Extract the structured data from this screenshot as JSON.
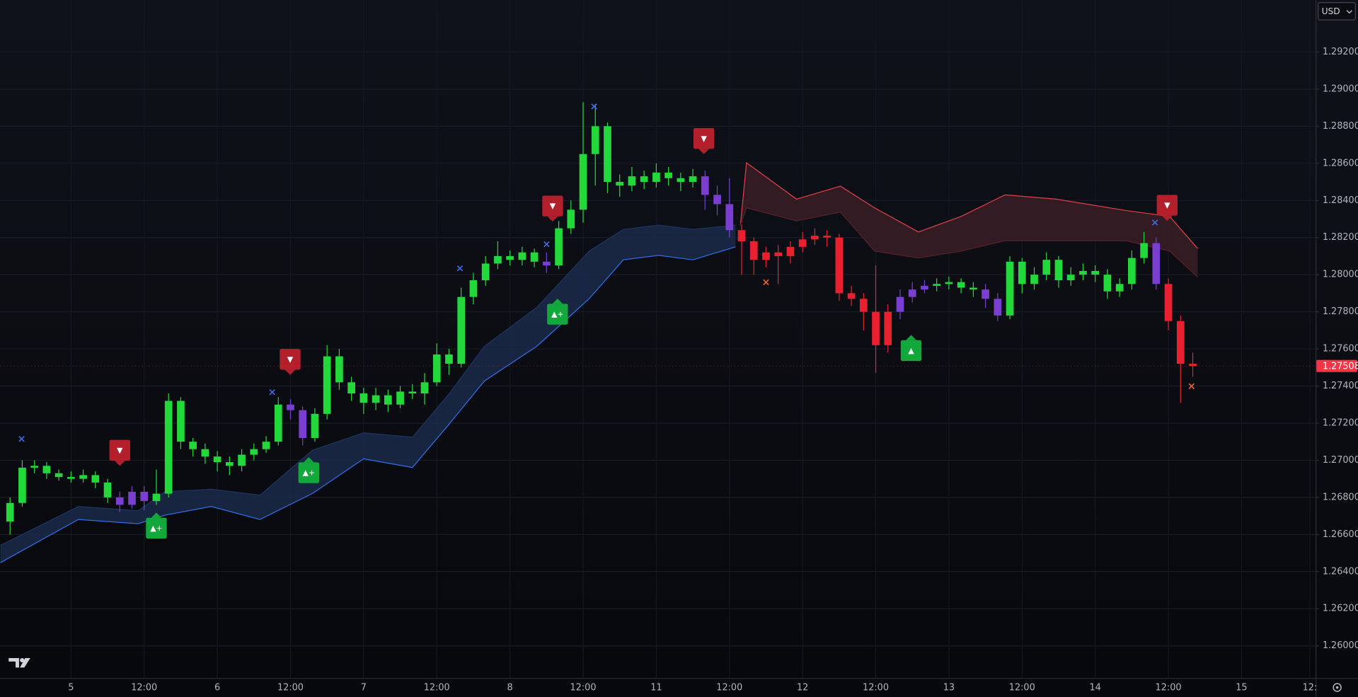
{
  "chart_data": {
    "type": "candlestick",
    "currency": "USD",
    "x": [
      -5,
      -4,
      -3,
      -2,
      -1,
      0,
      1,
      2,
      3,
      4,
      5,
      6,
      7,
      8,
      9,
      10,
      11,
      12,
      13,
      14,
      15,
      16,
      17,
      18,
      19,
      20,
      21,
      22,
      23,
      24,
      25,
      26,
      27,
      28,
      29,
      30,
      31,
      32,
      33,
      34,
      35,
      36,
      37,
      38,
      39,
      40,
      41,
      42,
      43,
      44,
      45,
      46,
      47,
      48,
      49,
      50,
      51,
      52,
      53,
      54,
      55,
      56,
      57,
      58,
      59,
      60,
      61,
      62,
      63,
      64,
      65,
      66,
      67,
      68,
      69,
      70,
      71,
      72,
      73,
      74,
      75,
      76,
      77,
      78,
      79,
      80,
      81,
      82,
      83,
      84,
      85,
      86,
      87,
      88,
      89,
      90,
      91,
      92
    ],
    "open": [
      1.2667,
      1.2677,
      1.2696,
      1.2697,
      1.2693,
      1.2691,
      1.269,
      1.2692,
      1.2688,
      1.268,
      1.2676,
      1.2683,
      1.2678,
      1.2682,
      1.2732,
      1.271,
      1.2706,
      1.2702,
      1.2699,
      1.2697,
      1.2703,
      1.2706,
      1.271,
      1.273,
      1.2727,
      1.2712,
      1.2725,
      1.2756,
      1.2742,
      1.2736,
      1.2731,
      1.2735,
      1.273,
      1.2737,
      1.2736,
      1.2742,
      1.2757,
      1.2752,
      1.2788,
      1.2797,
      1.2806,
      1.281,
      1.2808,
      1.2812,
      1.2807,
      1.2805,
      1.2825,
      1.2835,
      1.2865,
      1.288,
      1.285,
      1.2848,
      1.2853,
      1.285,
      1.2855,
      1.2852,
      1.285,
      1.2853,
      1.2843,
      1.2838,
      1.2824,
      1.2818,
      1.2808,
      1.2812,
      1.281,
      1.2815,
      1.2819,
      1.2821,
      1.282,
      1.279,
      1.2787,
      1.278,
      1.2762,
      1.278,
      1.2788,
      1.2792,
      1.2794,
      1.2795,
      1.2796,
      1.2793,
      1.2792,
      1.2787,
      1.2778,
      1.2807,
      1.2795,
      1.28,
      1.2808,
      1.2797,
      1.28,
      1.2802,
      1.28,
      1.2791,
      1.2795,
      1.2809,
      1.2817,
      1.2795,
      1.2775,
      1.2752
    ],
    "high": [
      1.268,
      1.27,
      1.27,
      1.2699,
      1.2695,
      1.2694,
      1.2695,
      1.2694,
      1.269,
      1.2683,
      1.2686,
      1.2686,
      1.2695,
      1.2736,
      1.2734,
      1.2712,
      1.2709,
      1.2705,
      1.2702,
      1.2706,
      1.2709,
      1.2713,
      1.2734,
      1.2733,
      1.2729,
      1.2728,
      1.2762,
      1.276,
      1.2745,
      1.2739,
      1.2739,
      1.2738,
      1.274,
      1.2741,
      1.2747,
      1.2763,
      1.276,
      1.2793,
      1.2801,
      1.281,
      1.2818,
      1.2813,
      1.2815,
      1.2814,
      1.2812,
      1.2829,
      1.284,
      1.2893,
      1.2892,
      1.2882,
      1.2854,
      1.2858,
      1.2856,
      1.286,
      1.2858,
      1.2855,
      1.2857,
      1.2856,
      1.2848,
      1.2852,
      1.2827,
      1.282,
      1.2815,
      1.2816,
      1.2818,
      1.2823,
      1.2825,
      1.2824,
      1.2822,
      1.2794,
      1.279,
      1.2805,
      1.2784,
      1.2792,
      1.2796,
      1.2797,
      1.2798,
      1.2799,
      1.2798,
      1.2796,
      1.2795,
      1.279,
      1.281,
      1.2809,
      1.2804,
      1.2812,
      1.281,
      1.2804,
      1.2806,
      1.2805,
      1.2803,
      1.2798,
      1.2813,
      1.2823,
      1.282,
      1.2798,
      1.2778,
      1.2758
    ],
    "low": [
      1.266,
      1.2675,
      1.2693,
      1.269,
      1.2689,
      1.2688,
      1.2688,
      1.2685,
      1.2677,
      1.2672,
      1.2674,
      1.2673,
      1.2676,
      1.268,
      1.2706,
      1.2702,
      1.2698,
      1.2694,
      1.2692,
      1.2694,
      1.27,
      1.2704,
      1.2708,
      1.2722,
      1.2708,
      1.271,
      1.2722,
      1.2738,
      1.2732,
      1.2725,
      1.2727,
      1.2726,
      1.2728,
      1.2733,
      1.273,
      1.274,
      1.2746,
      1.275,
      1.2784,
      1.2794,
      1.2803,
      1.2805,
      1.2805,
      1.2804,
      1.2801,
      1.2803,
      1.2822,
      1.2828,
      1.2848,
      1.2844,
      1.2842,
      1.2845,
      1.2846,
      1.2847,
      1.2848,
      1.2845,
      1.2847,
      1.2835,
      1.2832,
      1.282,
      1.28,
      1.28,
      1.2804,
      1.2795,
      1.2806,
      1.2812,
      1.2816,
      1.2815,
      1.2786,
      1.2783,
      1.277,
      1.2747,
      1.2758,
      1.2776,
      1.2785,
      1.279,
      1.2791,
      1.2792,
      1.279,
      1.2788,
      1.2782,
      1.2775,
      1.2776,
      1.279,
      1.2792,
      1.2797,
      1.2793,
      1.2794,
      1.2797,
      1.2796,
      1.2787,
      1.2788,
      1.2792,
      1.2806,
      1.2792,
      1.277,
      1.2731,
      1.2745
    ],
    "close": [
      1.2677,
      1.2696,
      1.2697,
      1.2693,
      1.2691,
      1.269,
      1.2692,
      1.2688,
      1.268,
      1.2676,
      1.2683,
      1.2678,
      1.2682,
      1.2732,
      1.271,
      1.2706,
      1.2702,
      1.2699,
      1.2697,
      1.2703,
      1.2706,
      1.271,
      1.273,
      1.2727,
      1.2712,
      1.2725,
      1.2756,
      1.2742,
      1.2736,
      1.2731,
      1.2735,
      1.273,
      1.2737,
      1.2736,
      1.2742,
      1.2757,
      1.2752,
      1.2788,
      1.2797,
      1.2806,
      1.281,
      1.2808,
      1.2812,
      1.2807,
      1.2805,
      1.2825,
      1.2835,
      1.2865,
      1.288,
      1.285,
      1.2848,
      1.2853,
      1.285,
      1.2855,
      1.2852,
      1.285,
      1.2853,
      1.2843,
      1.2838,
      1.2824,
      1.2818,
      1.2808,
      1.2812,
      1.281,
      1.2815,
      1.2819,
      1.2821,
      1.282,
      1.279,
      1.2787,
      1.278,
      1.2762,
      1.278,
      1.2788,
      1.2792,
      1.2794,
      1.2795,
      1.2796,
      1.2793,
      1.2792,
      1.2787,
      1.2778,
      1.2807,
      1.2795,
      1.28,
      1.2808,
      1.2797,
      1.28,
      1.2802,
      1.28,
      1.2791,
      1.2795,
      1.2809,
      1.2817,
      1.2795,
      1.2775,
      1.2752,
      1.27508
    ],
    "colors": [
      "#22d83a",
      "#22d83a",
      "#22d83a",
      "#22d83a",
      "#22d83a",
      "#22d83a",
      "#22d83a",
      "#22d83a",
      "#22d83a",
      "#7a3fd0",
      "#7a3fd0",
      "#7a3fd0",
      "#22d83a",
      "#22d83a",
      "#22d83a",
      "#22d83a",
      "#22d83a",
      "#22d83a",
      "#22d83a",
      "#22d83a",
      "#22d83a",
      "#22d83a",
      "#22d83a",
      "#7a3fd0",
      "#7a3fd0",
      "#22d83a",
      "#22d83a",
      "#22d83a",
      "#22d83a",
      "#22d83a",
      "#22d83a",
      "#22d83a",
      "#22d83a",
      "#22d83a",
      "#22d83a",
      "#22d83a",
      "#22d83a",
      "#22d83a",
      "#22d83a",
      "#22d83a",
      "#22d83a",
      "#22d83a",
      "#22d83a",
      "#22d83a",
      "#7a3fd0",
      "#22d83a",
      "#22d83a",
      "#22d83a",
      "#22d83a",
      "#22d83a",
      "#22d83a",
      "#22d83a",
      "#22d83a",
      "#22d83a",
      "#22d83a",
      "#22d83a",
      "#22d83a",
      "#7a3fd0",
      "#7a3fd0",
      "#7a3fd0",
      "#e8202f",
      "#e8202f",
      "#e8202f",
      "#e8202f",
      "#e8202f",
      "#e8202f",
      "#e8202f",
      "#e8202f",
      "#e8202f",
      "#e8202f",
      "#e8202f",
      "#e8202f",
      "#e8202f",
      "#7a3fd0",
      "#7a3fd0",
      "#7a3fd0",
      "#22d83a",
      "#22d83a",
      "#22d83a",
      "#22d83a",
      "#7a3fd0",
      "#7a3fd0",
      "#22d83a",
      "#22d83a",
      "#22d83a",
      "#22d83a",
      "#22d83a",
      "#22d83a",
      "#22d83a",
      "#22d83a",
      "#22d83a",
      "#22d83a",
      "#22d83a",
      "#22d83a",
      "#7a3fd0",
      "#e8202f",
      "#e8202f",
      "#e8202f"
    ],
    "bands": [
      {
        "fill": "#1b2a4a",
        "edge_colors": [
          "#1e3560",
          "#2f6fe8"
        ],
        "x": [
          -5.8,
          0.6,
          5.5,
          7.7,
          11.5,
          15.5,
          19.8,
          24,
          28,
          31,
          33.9,
          38.2,
          42.5,
          45.3,
          48.2,
          51,
          54.5
        ],
        "upper": [
          1.26541,
          1.26751,
          1.26728,
          1.2683,
          1.26844,
          1.26812,
          1.27054,
          1.27148,
          1.27124,
          1.27357,
          1.27614,
          1.27824,
          1.28127,
          1.28244,
          1.28267,
          1.28244,
          1.28267
        ],
        "lower": [
          1.26448,
          1.26681,
          1.26658,
          1.26704,
          1.26751,
          1.26681,
          1.26821,
          1.27008,
          1.26961,
          1.27194,
          1.27427,
          1.27614,
          1.27871,
          1.2808,
          1.28104,
          1.2808,
          1.2815
        ]
      },
      {
        "fill": "#3a1d24",
        "edge_colors": [
          "#e0404c",
          "#5a2028"
        ],
        "x": [
          54.9,
          55.4,
          59.5,
          63.1,
          65.9,
          69.5,
          73,
          76.6,
          80.8,
          86.5,
          90.1,
          92.4
        ],
        "upper": [
          1.28267,
          1.28603,
          1.28407,
          1.28477,
          1.2836,
          1.2823,
          1.28314,
          1.2843,
          1.28407,
          1.28346,
          1.28314,
          1.28141
        ],
        "lower": [
          1.28267,
          1.2836,
          1.2829,
          1.28337,
          1.28127,
          1.2809,
          1.28127,
          1.28183,
          1.28183,
          1.28183,
          1.28127,
          1.27987
        ]
      }
    ],
    "signals": [
      {
        "x": 4.0,
        "y": 1.27054,
        "label": "▼",
        "color": "#b3202c"
      },
      {
        "x": 17.97,
        "y": 1.27544,
        "label": "▼",
        "color": "#b3202c"
      },
      {
        "x": 39.5,
        "y": 1.2837,
        "label": "▼",
        "color": "#b3202c"
      },
      {
        "x": 51.9,
        "y": 1.28734,
        "label": "▼",
        "color": "#b3202c"
      },
      {
        "x": 89.9,
        "y": 1.28374,
        "label": "▼",
        "color": "#b3202c"
      },
      {
        "x": 7.0,
        "y": 1.26634,
        "label": "▲+",
        "color": "#12a83c"
      },
      {
        "x": 19.5,
        "y": 1.26933,
        "label": "▲+",
        "color": "#12a83c"
      },
      {
        "x": 39.9,
        "y": 1.27787,
        "label": "▲+",
        "color": "#12a83c"
      },
      {
        "x": 68.9,
        "y": 1.27591,
        "label": "▲",
        "color": "#12a83c"
      }
    ],
    "crosses": [
      {
        "x": -4.05,
        "y": 1.27115,
        "color": "#3d6ee8"
      },
      {
        "x": 16.5,
        "y": 1.27367,
        "color": "#3d6ee8"
      },
      {
        "x": 31.9,
        "y": 1.28034,
        "color": "#3d6ee8"
      },
      {
        "x": 39.0,
        "y": 1.28164,
        "color": "#3d6ee8"
      },
      {
        "x": 42.9,
        "y": 1.28906,
        "color": "#3d6ee8"
      },
      {
        "x": 88.9,
        "y": 1.28281,
        "color": "#3d6ee8"
      },
      {
        "x": 57.0,
        "y": 1.27959,
        "color": "#f0682a"
      },
      {
        "x": 91.9,
        "y": 1.27399,
        "color": "#f0682a"
      }
    ],
    "last_price_color": "#f23645",
    "xlim": [
      -5.824,
      102.0
    ],
    "ylim": [
      1.25827,
      1.2948
    ],
    "xticks": [
      {
        "value": 0,
        "label": "5"
      },
      {
        "value": 6,
        "label": "12:00"
      },
      {
        "value": 12,
        "label": "6"
      },
      {
        "value": 18,
        "label": "12:00"
      },
      {
        "value": 24,
        "label": "7"
      },
      {
        "value": 30,
        "label": "12:00"
      },
      {
        "value": 36,
        "label": "8"
      },
      {
        "value": 42,
        "label": "12:00"
      },
      {
        "value": 48,
        "label": "11"
      },
      {
        "value": 54,
        "label": "12:00"
      },
      {
        "value": 60,
        "label": "12"
      },
      {
        "value": 66,
        "label": "12:00"
      },
      {
        "value": 72,
        "label": "13"
      },
      {
        "value": 78,
        "label": "12:00"
      },
      {
        "value": 84,
        "label": "14"
      },
      {
        "value": 90,
        "label": "12:00"
      },
      {
        "value": 96,
        "label": "15"
      },
      {
        "value": 101.6,
        "label": "12:"
      }
    ],
    "yticks": [
      {
        "value": 1.26,
        "label": "1.26000"
      },
      {
        "value": 1.262,
        "label": "1.26200"
      },
      {
        "value": 1.264,
        "label": "1.26400"
      },
      {
        "value": 1.266,
        "label": "1.26600"
      },
      {
        "value": 1.268,
        "label": "1.26800"
      },
      {
        "value": 1.27,
        "label": "1.27000"
      },
      {
        "value": 1.272,
        "label": "1.27200"
      },
      {
        "value": 1.274,
        "label": "1.27400"
      },
      {
        "value": 1.276,
        "label": "1.27600"
      },
      {
        "value": 1.278,
        "label": "1.27800"
      },
      {
        "value": 1.28,
        "label": "1.28000"
      },
      {
        "value": 1.282,
        "label": "1.28200"
      },
      {
        "value": 1.284,
        "label": "1.28400"
      },
      {
        "value": 1.286,
        "label": "1.28600"
      },
      {
        "value": 1.288,
        "label": "1.28800"
      },
      {
        "value": 1.29,
        "label": "1.29000"
      },
      {
        "value": 1.292,
        "label": "1.29200"
      }
    ],
    "grid": true
  }
}
